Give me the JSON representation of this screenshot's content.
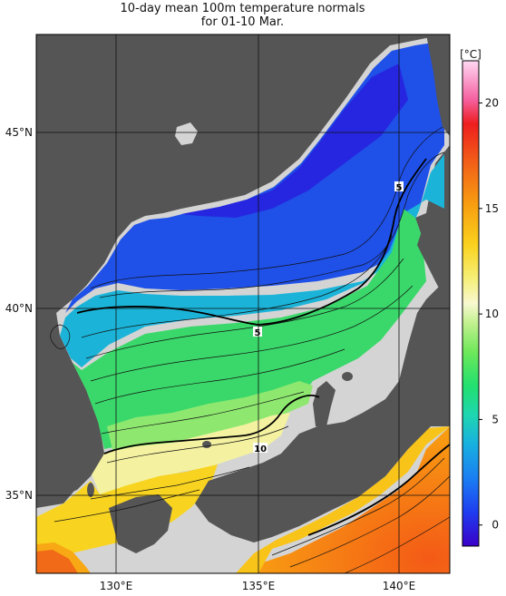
{
  "title": {
    "line1": "10-day mean 100m temperature normals",
    "line2": "for 01-10 Mar."
  },
  "axes": {
    "lon_labels": [
      "130°E",
      "135°E",
      "140°E"
    ],
    "lat_labels": [
      "45°N",
      "40°N",
      "35°N"
    ],
    "lon_range": [
      127,
      142
    ],
    "lat_range": [
      33,
      47.7
    ]
  },
  "colorbar": {
    "unit": "[°C]",
    "ticks": [
      "0",
      "5",
      "10",
      "15",
      "20"
    ],
    "range": [
      -1,
      22
    ]
  },
  "contour_labels": [
    {
      "text": "5",
      "lon": 140.0,
      "lat": 43.5
    },
    {
      "text": "5",
      "lon": 135.0,
      "lat": 39.5
    },
    {
      "text": "10",
      "lon": 135.1,
      "lat": 36.3
    }
  ],
  "colors": {
    "land": "#555555",
    "nodata": "#d4d4d4"
  }
}
